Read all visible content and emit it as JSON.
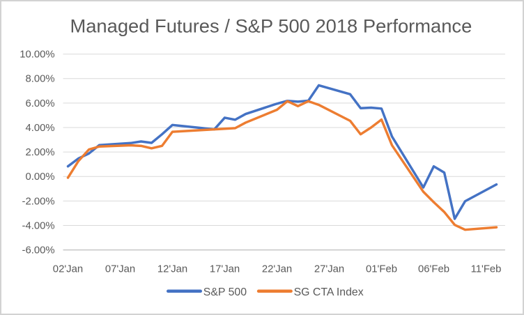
{
  "window": {
    "background": "#ffffff",
    "border_color": "#d2d2d2"
  },
  "chart_data": {
    "type": "line",
    "title": "Managed Futures / S&P 500 2018 Performance",
    "xlabel": "",
    "ylabel": "",
    "ylim": [
      -6,
      10
    ],
    "grid": "horizontal",
    "legend_position": "bottom",
    "text_color": "#595959",
    "gridline_color": "#d9d9d9",
    "axis_line_color": "#bfbfbf",
    "y_ticks": [
      {
        "value": 10,
        "label": "10.00%"
      },
      {
        "value": 8,
        "label": "8.00%"
      },
      {
        "value": 6,
        "label": "6.00%"
      },
      {
        "value": 4,
        "label": "4.00%"
      },
      {
        "value": 2,
        "label": "2.00%"
      },
      {
        "value": 0,
        "label": "0.00%"
      },
      {
        "value": -2,
        "label": "-2.00%"
      },
      {
        "value": -4,
        "label": "-4.00%"
      },
      {
        "value": -6,
        "label": "-6.00%"
      }
    ],
    "x_ticks": [
      {
        "day": 0,
        "label": "02'Jan"
      },
      {
        "day": 5,
        "label": "07'Jan"
      },
      {
        "day": 10,
        "label": "12'Jan"
      },
      {
        "day": 15,
        "label": "17'Jan"
      },
      {
        "day": 20,
        "label": "22'Jan"
      },
      {
        "day": 25,
        "label": "27'Jan"
      },
      {
        "day": 30,
        "label": "01'Feb"
      },
      {
        "day": 35,
        "label": "06'Feb"
      },
      {
        "day": 40,
        "label": "11'Feb"
      }
    ],
    "point_dates": [
      "02 Jan",
      "03 Jan",
      "04 Jan",
      "05 Jan",
      "08 Jan",
      "09 Jan",
      "10 Jan",
      "11 Jan",
      "12 Jan",
      "16 Jan",
      "17 Jan",
      "18 Jan",
      "19 Jan",
      "22 Jan",
      "23 Jan",
      "24 Jan",
      "25 Jan",
      "26 Jan",
      "29 Jan",
      "30 Jan",
      "31 Jan",
      "01 Feb",
      "02 Feb",
      "05 Feb",
      "06 Feb",
      "07 Feb",
      "08 Feb",
      "09 Feb",
      "12 Feb"
    ],
    "day_offsets": [
      0,
      1,
      2,
      3,
      6,
      7,
      8,
      9,
      10,
      14,
      15,
      16,
      17,
      20,
      21,
      22,
      23,
      24,
      27,
      28,
      29,
      30,
      31,
      34,
      35,
      36,
      37,
      38,
      41
    ],
    "series": [
      {
        "name": "S&P 500",
        "color": "#4472c4",
        "values": [
          0.83,
          1.47,
          1.88,
          2.56,
          2.73,
          2.86,
          2.75,
          3.45,
          4.21,
          3.85,
          4.8,
          4.64,
          5.11,
          5.95,
          6.18,
          6.12,
          6.19,
          7.45,
          6.72,
          5.58,
          5.62,
          5.55,
          3.27,
          -0.9,
          0.83,
          0.32,
          -3.46,
          -2.02,
          -0.65
        ]
      },
      {
        "name": "SG CTA Index",
        "color": "#ed7d31",
        "values": [
          -0.1,
          1.25,
          2.2,
          2.45,
          2.55,
          2.5,
          2.3,
          2.5,
          3.65,
          3.85,
          3.9,
          3.95,
          4.4,
          5.45,
          6.15,
          5.75,
          6.15,
          5.85,
          4.55,
          3.45,
          4.0,
          4.65,
          2.55,
          -1.25,
          -2.1,
          -2.9,
          -3.95,
          -4.35,
          -4.15
        ]
      }
    ]
  }
}
